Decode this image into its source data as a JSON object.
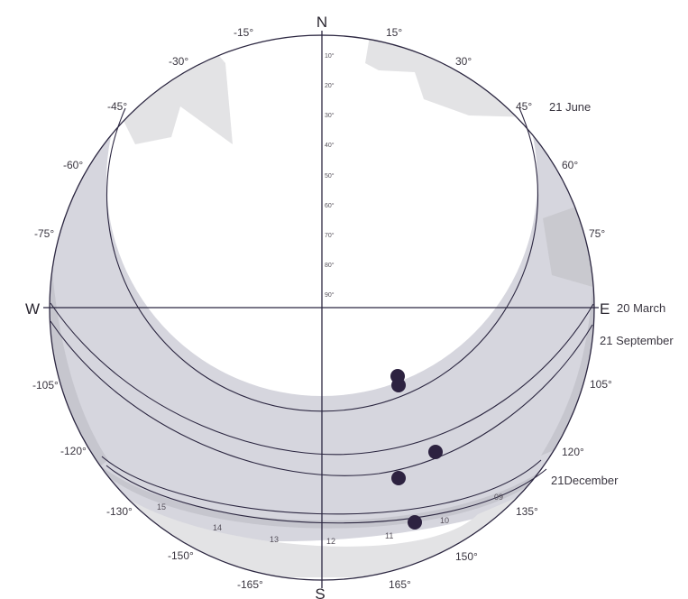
{
  "cardinals": {
    "north": "N",
    "south": "S",
    "west": "W",
    "east": "E"
  },
  "azimuth_labels": {
    "n15w": "-15°",
    "n30w": "-30°",
    "n45w": "-45°",
    "n60w": "-60°",
    "n75w": "-75°",
    "n105w": "-105°",
    "n120w": "-120°",
    "n130w": "-130°",
    "n150w": "-150°",
    "n165w": "-165°",
    "n15e": "15°",
    "n30e": "30°",
    "n45e": "45°",
    "n60e": "60°",
    "n75e": "75°",
    "n105e": "105°",
    "n120e": "120°",
    "n135e": "135°",
    "n150e": "150°",
    "n165e": "165°"
  },
  "altitude_labels": [
    "10°",
    "20°",
    "30°",
    "40°",
    "50°",
    "60°",
    "70°",
    "80°",
    "90°"
  ],
  "season_labels": {
    "june": "21 June",
    "march": "20 March",
    "september": "21 September",
    "december": "21December"
  },
  "hour_labels": [
    "15",
    "14",
    "13",
    "12",
    "11",
    "10",
    "09"
  ],
  "colors": {
    "sky": "#ffffff",
    "sun_band": "#d6d6de",
    "band_dark": "#c6c6ce",
    "obstruction": "#e3e3e5",
    "obstruction_dark": "#c9c9cf",
    "lines": "#2b2640",
    "sun_marker": "#2d2240"
  }
}
